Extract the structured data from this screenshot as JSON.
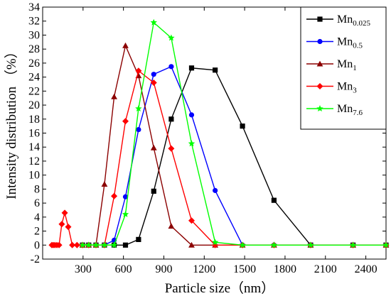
{
  "chart_data": {
    "type": "line",
    "xlabel": "Particle size（nm）",
    "ylabel": "Intensity distribution （%）",
    "xlim": [
      0,
      2550
    ],
    "ylim": [
      -2,
      34
    ],
    "xticks": [
      300,
      600,
      900,
      1200,
      1500,
      1800,
      2100,
      2400
    ],
    "yticks": [
      -2,
      0,
      2,
      4,
      6,
      8,
      10,
      12,
      14,
      16,
      18,
      20,
      22,
      24,
      26,
      28,
      30,
      32,
      34
    ],
    "legend": "top-right",
    "grid": false,
    "series": [
      {
        "name": "Mn",
        "subscript": "0.025",
        "color": "#000000",
        "marker": "square",
        "points": [
          [
            296,
            0
          ],
          [
            342,
            0
          ],
          [
            396,
            0
          ],
          [
            459,
            0
          ],
          [
            531,
            0
          ],
          [
            615,
            0
          ],
          [
            712,
            0.8
          ],
          [
            825,
            7.7
          ],
          [
            955,
            18
          ],
          [
            1106,
            25.3
          ],
          [
            1281,
            25
          ],
          [
            1484,
            17
          ],
          [
            1718,
            6.4
          ],
          [
            1990,
            0
          ],
          [
            2305,
            0
          ],
          [
            2550,
            0
          ]
        ]
      },
      {
        "name": "Mn",
        "subscript": "0.5",
        "color": "#0000ff",
        "marker": "circle",
        "points": [
          [
            296,
            0
          ],
          [
            342,
            0
          ],
          [
            396,
            0
          ],
          [
            459,
            0
          ],
          [
            531,
            0.7
          ],
          [
            615,
            6.9
          ],
          [
            712,
            16.5
          ],
          [
            825,
            24.4
          ],
          [
            955,
            25.5
          ],
          [
            1106,
            18.6
          ],
          [
            1281,
            7.8
          ],
          [
            1484,
            0
          ],
          [
            1718,
            0
          ],
          [
            1990,
            0
          ],
          [
            2305,
            0
          ],
          [
            2550,
            0
          ]
        ]
      },
      {
        "name": "Mn",
        "subscript": "1",
        "color": "#8b0000",
        "marker": "triangle",
        "points": [
          [
            296,
            0
          ],
          [
            342,
            0
          ],
          [
            396,
            0
          ],
          [
            459,
            8.7
          ],
          [
            531,
            21.2
          ],
          [
            615,
            28.5
          ],
          [
            712,
            24.2
          ],
          [
            825,
            13.9
          ],
          [
            955,
            2.7
          ],
          [
            1106,
            0
          ],
          [
            1281,
            0
          ],
          [
            1484,
            0
          ],
          [
            1718,
            0
          ],
          [
            1990,
            0
          ],
          [
            2305,
            0
          ],
          [
            2550,
            0
          ]
        ]
      },
      {
        "name": "Mn",
        "subscript": "3",
        "color": "#ff0000",
        "marker": "diamond",
        "points": [
          [
            68,
            0
          ],
          [
            79,
            0
          ],
          [
            91,
            0
          ],
          [
            106,
            0
          ],
          [
            122,
            0
          ],
          [
            142,
            3
          ],
          [
            164,
            4.6
          ],
          [
            190,
            2.6
          ],
          [
            220,
            0
          ],
          [
            255,
            0
          ],
          [
            296,
            0
          ],
          [
            342,
            0
          ],
          [
            396,
            0
          ],
          [
            459,
            0
          ],
          [
            531,
            7
          ],
          [
            615,
            17.7
          ],
          [
            712,
            24.9
          ],
          [
            825,
            23.2
          ],
          [
            955,
            13.8
          ],
          [
            1106,
            3.5
          ],
          [
            1281,
            0
          ],
          [
            1484,
            0
          ],
          [
            1718,
            0
          ],
          [
            1990,
            0
          ],
          [
            2305,
            0
          ],
          [
            2550,
            0
          ]
        ]
      },
      {
        "name": "Mn",
        "subscript": "7.6",
        "color": "#00ff00",
        "marker": "star",
        "points": [
          [
            296,
            0
          ],
          [
            342,
            0
          ],
          [
            396,
            0
          ],
          [
            459,
            0
          ],
          [
            531,
            0
          ],
          [
            615,
            4.4
          ],
          [
            712,
            19.5
          ],
          [
            825,
            31.8
          ],
          [
            955,
            29.6
          ],
          [
            1106,
            14.5
          ],
          [
            1281,
            0.4
          ],
          [
            1484,
            0
          ],
          [
            1718,
            0
          ],
          [
            1990,
            0
          ],
          [
            2305,
            0
          ],
          [
            2550,
            0
          ]
        ]
      }
    ]
  }
}
